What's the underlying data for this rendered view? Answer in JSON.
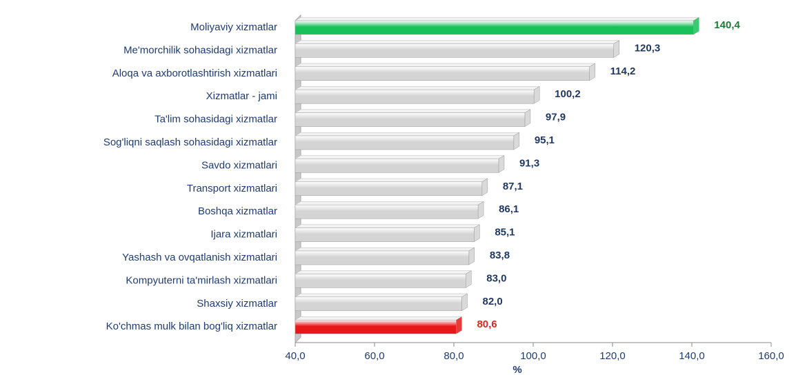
{
  "chart_data": {
    "type": "bar",
    "orientation": "horizontal",
    "categories": [
      "Moliyaviy xizmatlar",
      "Me'morchilik sohasidagi xizmatlar",
      "Aloqa va axborotlashtirish xizmatlari",
      "Xizmatlar - jami",
      "Ta'lim sohasidagi xizmatlar",
      "Sog'liqni saqlash sohasidagi xizmatlar",
      "Savdo xizmatlari",
      "Transport xizmatlari",
      "Boshqa xizmatlar",
      "Ijara xizmatlari",
      "Yashash va ovqatlanish xizmatlari",
      "Kompyuterni ta'mirlash xizmatlari",
      "Shaxsiy xizmatlar",
      "Ko'chmas mulk bilan bog'liq xizmatlar"
    ],
    "values": [
      140.4,
      120.3,
      114.2,
      100.2,
      97.9,
      95.1,
      91.3,
      87.1,
      86.1,
      85.1,
      83.8,
      83.0,
      82.0,
      80.6
    ],
    "value_labels": [
      "140,4",
      "120,3",
      "114,2",
      "100,2",
      "97,9",
      "95,1",
      "91,3",
      "87,1",
      "86,1",
      "85,1",
      "83,8",
      "83,0",
      "82,0",
      "80,6"
    ],
    "colors": [
      "#19c15a",
      "#d4d4d4",
      "#d4d4d4",
      "#d4d4d4",
      "#d4d4d4",
      "#d4d4d4",
      "#d4d4d4",
      "#d4d4d4",
      "#d4d4d4",
      "#d4d4d4",
      "#d4d4d4",
      "#d4d4d4",
      "#d4d4d4",
      "#e81818"
    ],
    "value_label_colors": [
      "#1e7b34",
      "#1f3864",
      "#1f3864",
      "#1f3864",
      "#1f3864",
      "#1f3864",
      "#1f3864",
      "#1f3864",
      "#1f3864",
      "#1f3864",
      "#1f3864",
      "#1f3864",
      "#1f3864",
      "#e8231c"
    ],
    "xlabel": "%",
    "xlim": [
      40,
      160
    ],
    "xticks": [
      {
        "value": 40,
        "label": "40,0"
      },
      {
        "value": 60,
        "label": "60,0"
      },
      {
        "value": 80,
        "label": "80,0"
      },
      {
        "value": 100,
        "label": "100,0"
      },
      {
        "value": 120,
        "label": "120,0"
      },
      {
        "value": 140,
        "label": "140,0"
      },
      {
        "value": 160,
        "label": "160,0"
      }
    ]
  }
}
